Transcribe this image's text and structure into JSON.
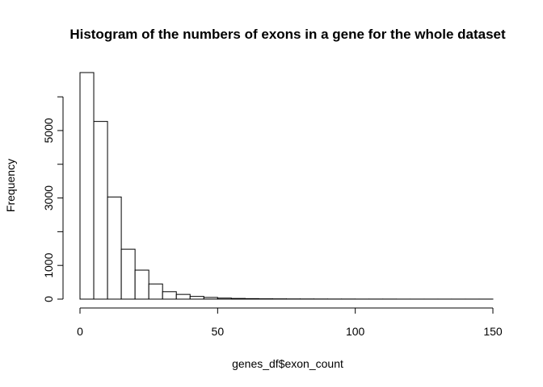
{
  "chart_data": {
    "type": "bar",
    "title": "Histogram of the numbers of exons in a gene for the whole dataset",
    "xlabel": "genes_df$exon_count",
    "ylabel": "Frequency",
    "bin_width": 5,
    "bin_edges": [
      0,
      5,
      10,
      15,
      20,
      25,
      30,
      35,
      40,
      45,
      50,
      55,
      60,
      65,
      70,
      75,
      80,
      85,
      90,
      95,
      100,
      105,
      110,
      115,
      120,
      125,
      130,
      135,
      140,
      145,
      150
    ],
    "values": [
      6720,
      5270,
      3030,
      1480,
      860,
      450,
      220,
      140,
      80,
      50,
      30,
      20,
      15,
      10,
      8,
      6,
      5,
      4,
      3,
      3,
      2,
      2,
      2,
      1,
      1,
      1,
      1,
      1,
      1,
      1
    ],
    "xlim": [
      0,
      150
    ],
    "ylim": [
      0,
      6720
    ],
    "x_ticks": [
      0,
      50,
      100,
      150
    ],
    "x_tick_labels": [
      "0",
      "50",
      "100",
      "150"
    ],
    "y_ticks": [
      0,
      1000,
      2000,
      3000,
      4000,
      5000,
      6000
    ],
    "y_tick_labels": [
      "0",
      "1000",
      "3000",
      "5000"
    ],
    "y_labeled_ticks": [
      0,
      1000,
      3000,
      5000
    ],
    "grid": false,
    "legend": "none"
  }
}
